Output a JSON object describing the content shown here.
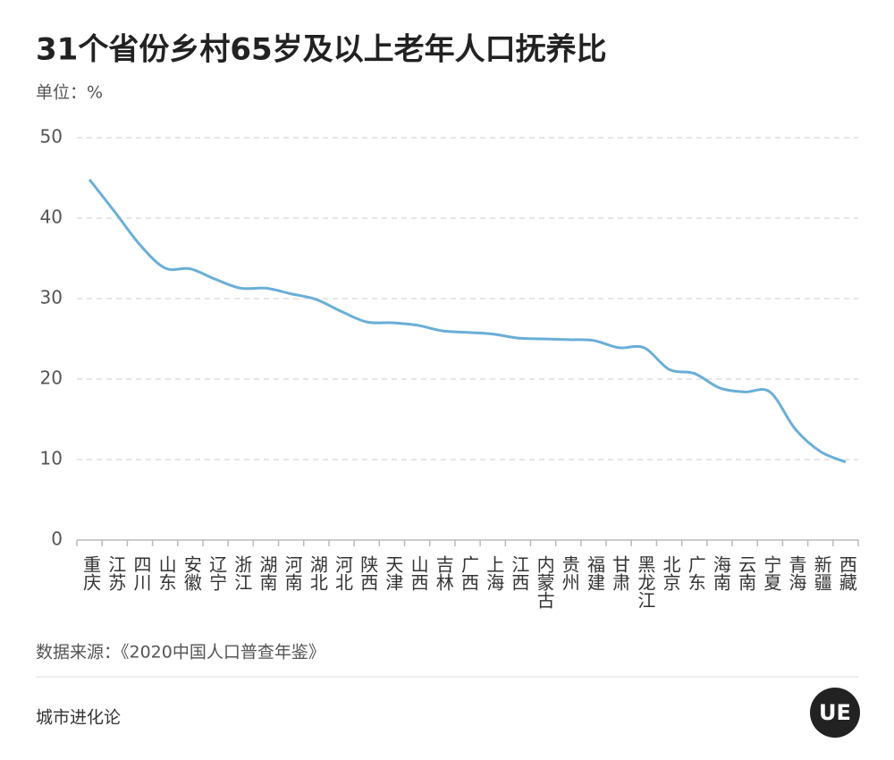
{
  "chart_data": {
    "type": "line",
    "title": "31个省份乡村65岁及以上老年人口抚养比",
    "unit_label": "单位：%",
    "source": "数据来源：《2020中国人口普查年鉴》",
    "footer": "城市进化论",
    "logo": "UE",
    "categories": [
      "重庆",
      "江苏",
      "四川",
      "山东",
      "安徽",
      "辽宁",
      "浙江",
      "湖南",
      "河南",
      "湖北",
      "河北",
      "陕西",
      "天津",
      "山西",
      "吉林",
      "广西",
      "上海",
      "江西",
      "内蒙古",
      "贵州",
      "福建",
      "甘肃",
      "黑龙江",
      "北京",
      "广东",
      "海南",
      "云南",
      "宁夏",
      "青海",
      "新疆",
      "西藏"
    ],
    "series": [
      {
        "color": "#6aaed8",
        "values": [
          44.8,
          40.8,
          36.7,
          33.8,
          33.7,
          32.4,
          31.3,
          31.3,
          30.6,
          29.9,
          28.4,
          27.1,
          27.0,
          26.7,
          26.0,
          25.8,
          25.6,
          25.1,
          25.0,
          24.9,
          24.8,
          23.9,
          23.9,
          21.2,
          20.7,
          18.9,
          18.4,
          18.4,
          13.8,
          11.0,
          9.7
        ]
      }
    ],
    "ylim": [
      0,
      50
    ],
    "yticks": [
      0,
      10,
      20,
      30,
      40,
      50
    ],
    "grid": true
  }
}
